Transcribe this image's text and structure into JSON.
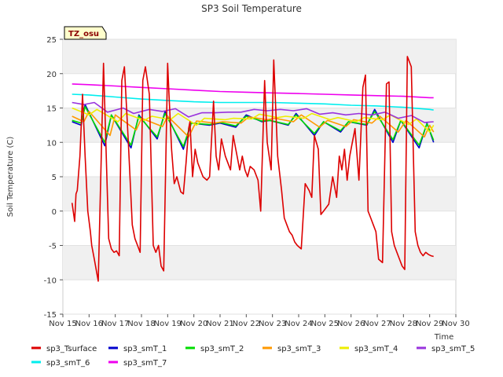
{
  "chart_data": {
    "type": "line",
    "title": "SP3 Soil Temperature",
    "xlabel": "Time",
    "ylabel": "Soil Temperature (C)",
    "ylim": [
      -15,
      25
    ],
    "xlim": [
      "Nov 15",
      "Nov 30"
    ],
    "yticks": [
      -15,
      -10,
      -5,
      0,
      5,
      10,
      15,
      20,
      25
    ],
    "xticks": [
      "Nov 15",
      "Nov 16",
      "Nov 17",
      "Nov 18",
      "Nov 19",
      "Nov 20",
      "Nov 21",
      "Nov 22",
      "Nov 23",
      "Nov 24",
      "Nov 25",
      "Nov 26",
      "Nov 27",
      "Nov 28",
      "Nov 29",
      "Nov 30"
    ],
    "badge": "TZ_osu",
    "grid": "horizontal bands",
    "legend_position": "bottom",
    "series": [
      {
        "name": "sp3_Tsurface",
        "color": "#dd0000",
        "x": [
          15.35,
          15.45,
          15.5,
          15.55,
          15.65,
          15.75,
          15.85,
          15.95,
          16.05,
          16.1,
          16.2,
          16.35,
          16.55,
          16.75,
          16.85,
          16.95,
          17.05,
          17.15,
          17.25,
          17.35,
          17.5,
          17.65,
          17.75,
          17.85,
          17.95,
          18.05,
          18.15,
          18.3,
          18.45,
          18.55,
          18.65,
          18.75,
          18.85,
          19.0,
          19.05,
          19.15,
          19.25,
          19.35,
          19.5,
          19.6,
          19.7,
          19.8,
          19.85,
          19.95,
          20.05,
          20.15,
          20.35,
          20.5,
          20.6,
          20.75,
          20.85,
          20.95,
          21.05,
          21.2,
          21.4,
          21.5,
          21.6,
          21.75,
          21.85,
          21.95,
          22.05,
          22.15,
          22.3,
          22.45,
          22.55,
          22.7,
          22.8,
          22.95,
          23.05,
          23.2,
          23.35,
          23.45,
          23.55,
          23.65,
          23.75,
          23.85,
          23.95,
          24.1,
          24.25,
          24.4,
          24.5,
          24.6,
          24.75,
          24.85,
          24.95,
          25.05,
          25.15,
          25.3,
          25.45,
          25.55,
          25.65,
          25.75,
          25.85,
          25.95,
          26.05,
          26.15,
          26.3,
          26.45,
          26.55,
          26.65,
          26.75,
          26.85,
          26.95,
          27.05,
          27.2,
          27.35,
          27.45,
          27.55,
          27.65,
          27.75,
          27.85,
          27.95,
          28.05,
          28.15,
          28.3,
          28.45,
          28.55,
          28.65,
          28.75,
          28.85,
          28.95,
          29.05,
          29.15
        ],
        "y": [
          1.2,
          -1.5,
          2.5,
          3,
          8,
          17,
          8,
          0,
          -3,
          -5,
          -7,
          -10.2,
          21.5,
          -4,
          -5.5,
          -6,
          -5.8,
          -6.5,
          19,
          21,
          10,
          -2,
          -4,
          -5,
          -6,
          19,
          21,
          17,
          -5,
          -6,
          -5,
          -8,
          -8.7,
          21.5,
          17,
          9,
          4,
          5,
          2.8,
          2.5,
          7,
          12,
          13,
          5,
          9,
          7,
          5,
          4.5,
          5,
          16,
          8,
          6,
          10.5,
          8,
          6,
          11,
          9,
          6,
          8,
          6,
          5,
          6.5,
          6,
          4.5,
          0,
          19,
          10,
          6,
          22,
          8,
          3,
          -1,
          -2,
          -3,
          -3.5,
          -4.5,
          -5,
          -5.5,
          4,
          3,
          2,
          11,
          9,
          -0.5,
          0,
          0.5,
          1,
          5,
          2,
          8,
          6,
          9,
          4.5,
          8,
          10,
          12,
          4.5,
          18,
          19.8,
          0,
          -1,
          -2,
          -3,
          -7,
          -7.5,
          18.5,
          18.8,
          -3,
          -5,
          -6,
          -7,
          -8,
          -8.5,
          22.5,
          21,
          -3,
          -5,
          -6,
          -6.5,
          -6,
          -6.3,
          -6.5,
          -6.6
        ]
      },
      {
        "name": "sp3_smT_1",
        "color": "#0000cc",
        "x": [
          15.35,
          15.7,
          15.85,
          16.6,
          16.85,
          17.6,
          17.9,
          18.6,
          18.9,
          19.6,
          19.9,
          20.6,
          21.0,
          21.6,
          22.0,
          22.6,
          22.9,
          23.6,
          23.9,
          24.6,
          24.95,
          25.6,
          25.9,
          26.6,
          26.9,
          27.6,
          27.9,
          28.6,
          28.9,
          29.15
        ],
        "y": [
          13,
          12.5,
          15.5,
          9.5,
          14,
          9.2,
          14,
          10.5,
          14.5,
          9,
          12.8,
          12.5,
          12.8,
          12.2,
          14,
          13,
          13.2,
          12.5,
          14.2,
          11,
          13,
          11.5,
          13,
          12.5,
          14.8,
          10,
          13.2,
          9.2,
          12.8,
          10
        ]
      },
      {
        "name": "sp3_smT_2",
        "color": "#00dd00",
        "x": [
          15.35,
          15.7,
          15.85,
          16.6,
          16.85,
          17.6,
          17.9,
          18.6,
          18.9,
          19.6,
          19.9,
          20.6,
          21.0,
          21.6,
          22.0,
          22.6,
          22.9,
          23.6,
          23.9,
          24.6,
          24.95,
          25.6,
          25.9,
          26.6,
          26.9,
          27.6,
          27.9,
          28.6,
          28.9,
          29.15
        ],
        "y": [
          13.2,
          12.8,
          15.2,
          10,
          14,
          9.6,
          13.8,
          10.8,
          14.2,
          9.4,
          12.8,
          12.6,
          12.9,
          12.4,
          13.8,
          13.1,
          13.2,
          12.6,
          14,
          11.3,
          13,
          11.7,
          13,
          12.6,
          14.5,
          10.4,
          13.2,
          9.6,
          12.7,
          10.3
        ]
      },
      {
        "name": "sp3_smT_3",
        "color": "#ff9900",
        "x": [
          15.35,
          15.8,
          16.0,
          16.8,
          17.0,
          17.8,
          18.0,
          18.8,
          19.0,
          19.8,
          20.1,
          20.8,
          21.1,
          21.8,
          22.1,
          22.8,
          23.1,
          23.8,
          24.1,
          24.8,
          25.1,
          25.8,
          26.1,
          26.8,
          27.1,
          27.8,
          28.1,
          28.8,
          29.0,
          29.15
        ],
        "y": [
          13.8,
          13,
          14.5,
          11,
          14,
          11.8,
          13.5,
          12.3,
          13.8,
          10.8,
          13.1,
          12.8,
          13,
          12.8,
          13.7,
          13.3,
          13.5,
          13,
          14,
          12.2,
          13.2,
          12.3,
          13.3,
          12.8,
          13.8,
          11.5,
          13.2,
          10.8,
          12.5,
          11.5
        ]
      },
      {
        "name": "sp3_smT_4",
        "color": "#eeee00",
        "x": [
          15.35,
          16.0,
          16.3,
          17.1,
          17.4,
          18.1,
          18.4,
          19.1,
          19.4,
          20.1,
          20.4,
          21.2,
          21.5,
          22.2,
          22.5,
          23.2,
          23.5,
          24.2,
          24.5,
          25.2,
          25.5,
          26.2,
          26.5,
          27.2,
          27.5,
          28.2,
          28.5,
          29.0,
          29.15
        ],
        "y": [
          15,
          14,
          14.8,
          13,
          14.2,
          13.2,
          13.8,
          13.3,
          14.2,
          12.5,
          13.5,
          13.3,
          13.5,
          13.4,
          14.1,
          13.6,
          13.8,
          13.5,
          14.2,
          13.3,
          13.6,
          13,
          13.6,
          13.3,
          14,
          12.6,
          13.4,
          11.5,
          12.5
        ]
      },
      {
        "name": "sp3_smT_5",
        "color": "#9933dd",
        "x": [
          15.35,
          15.8,
          16.2,
          16.7,
          17.3,
          17.7,
          18.3,
          18.8,
          19.3,
          19.8,
          20.3,
          20.8,
          21.3,
          21.8,
          22.3,
          22.8,
          23.3,
          23.8,
          24.3,
          24.8,
          25.3,
          25.8,
          26.3,
          26.8,
          27.3,
          27.8,
          28.3,
          28.8,
          29.15
        ],
        "y": [
          15.8,
          15.5,
          15.8,
          14.4,
          15,
          14.2,
          14.8,
          14.5,
          14.9,
          13.7,
          14.3,
          14.3,
          14.4,
          14.4,
          14.8,
          14.6,
          14.8,
          14.6,
          14.9,
          14.1,
          14.3,
          14,
          14.2,
          14,
          14.4,
          13.5,
          13.9,
          12.9,
          13
        ]
      },
      {
        "name": "sp3_smT_6",
        "color": "#00eeee",
        "x": [
          15.35,
          16.0,
          17.0,
          18.0,
          19.0,
          20.0,
          21.0,
          22.0,
          23.0,
          24.0,
          25.0,
          26.0,
          27.0,
          28.0,
          29.0,
          29.15
        ],
        "y": [
          17,
          16.9,
          16.6,
          16.3,
          16.1,
          15.9,
          15.8,
          15.8,
          15.8,
          15.7,
          15.6,
          15.4,
          15.3,
          15.1,
          14.8,
          14.7
        ]
      },
      {
        "name": "sp3_smT_7",
        "color": "#ee00ee",
        "x": [
          15.35,
          16.0,
          17.0,
          18.0,
          19.0,
          20.0,
          21.0,
          22.0,
          23.0,
          24.0,
          25.0,
          26.0,
          27.0,
          28.0,
          29.0,
          29.15
        ],
        "y": [
          18.5,
          18.4,
          18.2,
          18,
          17.8,
          17.6,
          17.4,
          17.3,
          17.2,
          17.1,
          17,
          16.9,
          16.8,
          16.7,
          16.5,
          16.5
        ]
      }
    ]
  }
}
